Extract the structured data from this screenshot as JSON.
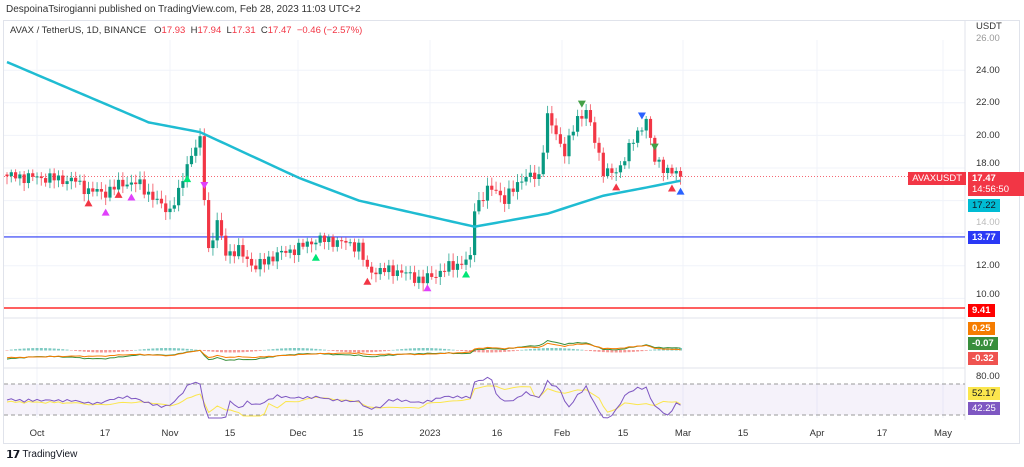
{
  "publisher": "DespoinaTsirogianni published on TradingView.com, Feb 28, 2023 11:03 UTC+2",
  "legend": {
    "symbol": "AVAX / TetherUS, 1D, BINANCE",
    "o_label": "O",
    "o": "17.93",
    "h_label": "H",
    "h": "17.94",
    "l_label": "L",
    "l": "17.31",
    "c_label": "C",
    "c": "17.47",
    "change": "−0.46 (−2.57%)"
  },
  "price_axis": {
    "unit": "USDT",
    "ticks": [
      "26.00",
      "24.00",
      "22.00",
      "20.00",
      "18.00",
      "14.00",
      "12.00",
      "10.00"
    ]
  },
  "tags": {
    "symbol": "AVAXUSDT",
    "last": "17.47",
    "countdown": "14:56:50",
    "ma": "17.22",
    "blue_line": "13.77",
    "red_line": "9.41",
    "macd_signal": "0.25",
    "macd_hist": "-0.07",
    "macd_line": "-0.32",
    "rsi_top": "80.00",
    "rsi_ma": "52.17",
    "rsi": "42.25"
  },
  "colors": {
    "up": "#089981",
    "down": "#f23645",
    "ma": "#1fbcd2",
    "blue_line": "#2a39f5",
    "red_line": "#ff0000",
    "macd": "#f57c00",
    "signal": "#388e3c",
    "rsi": "#7e57c2",
    "rsi_ma": "#fbe64d"
  },
  "time_axis": [
    "Oct",
    "17",
    "Nov",
    "15",
    "Dec",
    "15",
    "2023",
    "16",
    "Feb",
    "15",
    "Mar",
    "15",
    "Apr",
    "17",
    "May"
  ],
  "footer": {
    "brand": "TradingView",
    "logo": "TV"
  },
  "chart_data": {
    "type": "candlestick",
    "x_start": "2022-09-24",
    "x_end": "2023-05-03",
    "ylim": [
      9,
      26.5
    ],
    "close_anchors": [
      [
        "2022-09-24",
        17.5
      ],
      [
        "2022-10-03",
        17.4
      ],
      [
        "2022-10-10",
        17.2
      ],
      [
        "2022-10-13",
        16.6
      ],
      [
        "2022-10-17",
        16.5
      ],
      [
        "2022-10-21",
        17.1
      ],
      [
        "2022-10-25",
        17.0
      ],
      [
        "2022-10-29",
        15.9
      ],
      [
        "2022-11-01",
        15.4
      ],
      [
        "2022-11-03",
        16.4
      ],
      [
        "2022-11-05",
        18.3
      ],
      [
        "2022-11-07",
        19.3
      ],
      [
        "2022-11-08",
        19.6
      ],
      [
        "2022-11-09",
        16.3
      ],
      [
        "2022-11-10",
        13.0
      ],
      [
        "2022-11-12",
        14.6
      ],
      [
        "2022-11-14",
        12.8
      ],
      [
        "2022-11-17",
        12.9
      ],
      [
        "2022-11-21",
        11.9
      ],
      [
        "2022-11-25",
        12.6
      ],
      [
        "2022-12-01",
        13.1
      ],
      [
        "2022-12-05",
        13.6
      ],
      [
        "2022-12-10",
        13.5
      ],
      [
        "2022-12-15",
        13.2
      ],
      [
        "2022-12-17",
        11.7
      ],
      [
        "2022-12-24",
        11.7
      ],
      [
        "2022-12-30",
        11.1
      ],
      [
        "2023-01-05",
        11.9
      ],
      [
        "2023-01-10",
        12.4
      ],
      [
        "2023-01-11",
        15.6
      ],
      [
        "2023-01-14",
        16.6
      ],
      [
        "2023-01-16",
        16.7
      ],
      [
        "2023-01-18",
        16.0
      ],
      [
        "2023-01-22",
        17.4
      ],
      [
        "2023-01-26",
        17.5
      ],
      [
        "2023-01-28",
        21.1
      ],
      [
        "2023-02-01",
        19.0
      ],
      [
        "2023-02-04",
        21.0
      ],
      [
        "2023-02-06",
        21.6
      ],
      [
        "2023-02-08",
        19.6
      ],
      [
        "2023-02-10",
        17.9
      ],
      [
        "2023-02-13",
        17.6
      ],
      [
        "2023-02-16",
        19.3
      ],
      [
        "2023-02-18",
        20.0
      ],
      [
        "2023-02-20",
        21.1
      ],
      [
        "2023-02-22",
        18.4
      ],
      [
        "2023-02-25",
        17.9
      ],
      [
        "2023-02-28",
        17.47
      ]
    ],
    "ma_anchors": [
      [
        "2022-09-24",
        24.5
      ],
      [
        "2022-10-27",
        20.8
      ],
      [
        "2022-11-08",
        20.2
      ],
      [
        "2022-12-01",
        17.4
      ],
      [
        "2022-12-15",
        16.0
      ],
      [
        "2023-01-11",
        14.4
      ],
      [
        "2023-01-28",
        15.2
      ],
      [
        "2023-02-10",
        16.3
      ],
      [
        "2023-02-20",
        16.8
      ],
      [
        "2023-02-28",
        17.22
      ]
    ],
    "hlines": [
      {
        "value": 13.77,
        "color": "blue"
      },
      {
        "value": 9.41,
        "color": "red"
      }
    ],
    "signals": [
      [
        "2022-10-13",
        "up",
        "#f23645"
      ],
      [
        "2022-10-17",
        "up",
        "#e040fb"
      ],
      [
        "2022-10-20",
        "up",
        "#f23645"
      ],
      [
        "2022-10-23",
        "up",
        "#e040fb"
      ],
      [
        "2022-11-05",
        "up",
        "#00e676"
      ],
      [
        "2022-11-09",
        "down",
        "#e040fb"
      ],
      [
        "2022-12-05",
        "up",
        "#00e676"
      ],
      [
        "2022-12-17",
        "up",
        "#f23645"
      ],
      [
        "2022-12-31",
        "up",
        "#e040fb"
      ],
      [
        "2023-01-09",
        "up",
        "#00e676"
      ],
      [
        "2023-02-05",
        "down",
        "#43a047"
      ],
      [
        "2023-02-13",
        "up",
        "#f23645"
      ],
      [
        "2023-02-19",
        "down",
        "#2962ff"
      ],
      [
        "2023-02-22",
        "down",
        "#43a047"
      ],
      [
        "2023-02-26",
        "up",
        "#f23645"
      ],
      [
        "2023-02-28",
        "up",
        "#2962ff"
      ]
    ]
  }
}
